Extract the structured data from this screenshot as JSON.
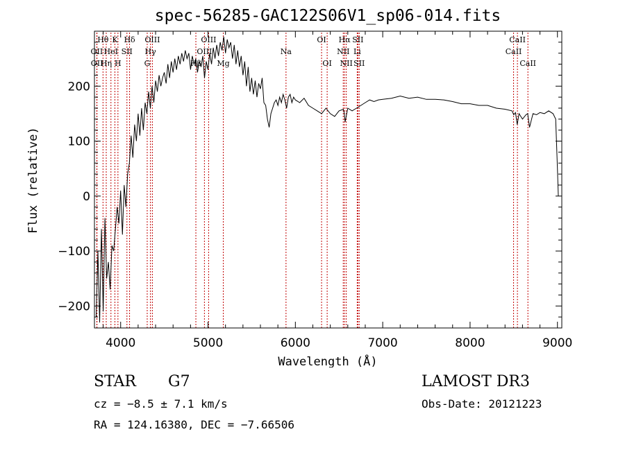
{
  "chart_data": {
    "type": "line",
    "title": "spec-56285-GAC122S06V1_sp06-014.fits",
    "xlabel": "Wavelength (Å)",
    "ylabel": "Flux (relative)",
    "xlim": [
      3700,
      9050
    ],
    "ylim": [
      -240,
      300
    ],
    "xticks": [
      4000,
      5000,
      6000,
      7000,
      8000,
      9000
    ],
    "xtick_labels": [
      "4000",
      "5000",
      "6000",
      "7000",
      "8000",
      "9000"
    ],
    "yticks": [
      -200,
      -100,
      0,
      100,
      200
    ],
    "ytick_labels": [
      "−200",
      "−100",
      "0",
      "100",
      "200"
    ],
    "grid": false,
    "series": [
      {
        "name": "spectrum",
        "x": [
          3720,
          3740,
          3760,
          3780,
          3800,
          3820,
          3840,
          3860,
          3880,
          3900,
          3920,
          3940,
          3960,
          3980,
          4000,
          4020,
          4040,
          4060,
          4080,
          4100,
          4120,
          4140,
          4160,
          4180,
          4200,
          4220,
          4240,
          4260,
          4280,
          4300,
          4320,
          4340,
          4360,
          4380,
          4400,
          4420,
          4440,
          4460,
          4480,
          4500,
          4520,
          4540,
          4560,
          4580,
          4600,
          4620,
          4640,
          4660,
          4680,
          4700,
          4720,
          4740,
          4760,
          4780,
          4800,
          4820,
          4840,
          4860,
          4880,
          4900,
          4920,
          4940,
          4960,
          4980,
          5000,
          5020,
          5040,
          5060,
          5080,
          5100,
          5120,
          5140,
          5160,
          5180,
          5200,
          5220,
          5240,
          5260,
          5280,
          5300,
          5320,
          5340,
          5360,
          5380,
          5400,
          5420,
          5440,
          5460,
          5480,
          5500,
          5520,
          5540,
          5560,
          5580,
          5600,
          5620,
          5640,
          5660,
          5680,
          5700,
          5720,
          5740,
          5760,
          5780,
          5800,
          5820,
          5840,
          5860,
          5880,
          5900,
          5920,
          5940,
          5960,
          5980,
          6000,
          6050,
          6100,
          6150,
          6200,
          6250,
          6300,
          6350,
          6400,
          6450,
          6500,
          6550,
          6560,
          6570,
          6600,
          6650,
          6700,
          6750,
          6800,
          6850,
          6900,
          6950,
          7000,
          7100,
          7200,
          7300,
          7400,
          7500,
          7600,
          7700,
          7800,
          7900,
          8000,
          8100,
          8200,
          8300,
          8400,
          8480,
          8500,
          8520,
          8540,
          8560,
          8600,
          8640,
          8660,
          8680,
          8720,
          8760,
          8800,
          8850,
          8900,
          8950,
          8980,
          9000,
          9010
        ],
        "y": [
          -220,
          -100,
          -230,
          -60,
          -210,
          -40,
          -150,
          -120,
          -170,
          -90,
          -100,
          -60,
          -20,
          -50,
          10,
          -70,
          20,
          -20,
          40,
          60,
          110,
          70,
          130,
          100,
          150,
          110,
          160,
          120,
          170,
          150,
          190,
          160,
          200,
          170,
          210,
          190,
          220,
          200,
          215,
          225,
          205,
          240,
          215,
          245,
          225,
          250,
          230,
          255,
          240,
          260,
          245,
          265,
          250,
          260,
          230,
          255,
          240,
          250,
          225,
          245,
          235,
          255,
          215,
          245,
          230,
          260,
          240,
          270,
          250,
          275,
          255,
          280,
          265,
          290,
          260,
          285,
          270,
          280,
          250,
          275,
          240,
          265,
          235,
          255,
          220,
          245,
          200,
          235,
          190,
          215,
          185,
          210,
          180,
          205,
          195,
          215,
          170,
          165,
          140,
          125,
          150,
          160,
          170,
          175,
          165,
          180,
          170,
          185,
          175,
          160,
          180,
          185,
          170,
          180,
          175,
          170,
          178,
          165,
          160,
          155,
          150,
          160,
          150,
          145,
          155,
          158,
          150,
          135,
          160,
          155,
          160,
          165,
          170,
          175,
          172,
          175,
          176,
          178,
          182,
          178,
          180,
          176,
          176,
          175,
          172,
          168,
          168,
          165,
          165,
          160,
          158,
          155,
          148,
          152,
          130,
          150,
          140,
          148,
          150,
          125,
          150,
          148,
          152,
          150,
          155,
          150,
          140,
          50,
          0
        ]
      }
    ],
    "lines": [
      {
        "name": "Hδ",
        "wave": 4102,
        "row": 0
      },
      {
        "name": "OII",
        "wave": 3727,
        "row": 1
      },
      {
        "name": "OII",
        "wave": 3729,
        "row": 2
      },
      {
        "name": "Hθ",
        "wave": 3798,
        "row": 0
      },
      {
        "name": "Hη",
        "wave": 3835,
        "row": 2
      },
      {
        "name": "HeI",
        "wave": 3889,
        "row": 1
      },
      {
        "name": "K",
        "wave": 3934,
        "row": 0
      },
      {
        "name": "H",
        "wave": 3969,
        "row": 2
      },
      {
        "name": "SII",
        "wave": 4072,
        "row": 1
      },
      {
        "name": "OIII",
        "wave": 4363,
        "row": 0
      },
      {
        "name": "Hγ",
        "wave": 4341,
        "row": 1
      },
      {
        "name": "G",
        "wave": 4304,
        "row": 2
      },
      {
        "name": "Hβ",
        "wave": 4861,
        "row": 2
      },
      {
        "name": "OIII",
        "wave": 4959,
        "row": 1
      },
      {
        "name": "OIII",
        "wave": 5007,
        "row": 0
      },
      {
        "name": "Mg",
        "wave": 5175,
        "row": 2
      },
      {
        "name": "Na",
        "wave": 5893,
        "row": 1
      },
      {
        "name": "OI",
        "wave": 6300,
        "row": 0
      },
      {
        "name": "OI",
        "wave": 6364,
        "row": 2
      },
      {
        "name": "Hα",
        "wave": 6563,
        "row": 0
      },
      {
        "name": "NII",
        "wave": 6548,
        "row": 1
      },
      {
        "name": "NII",
        "wave": 6583,
        "row": 2
      },
      {
        "name": "SII",
        "wave": 6716,
        "row": 0
      },
      {
        "name": "Li",
        "wave": 6708,
        "row": 1
      },
      {
        "name": "SII",
        "wave": 6731,
        "row": 2
      },
      {
        "name": "CaII",
        "wave": 8542,
        "row": 0
      },
      {
        "name": "CaII",
        "wave": 8498,
        "row": 1
      },
      {
        "name": "CaII",
        "wave": 8662,
        "row": 2
      }
    ]
  },
  "info": {
    "class_label": "STAR",
    "subclass": "G7",
    "survey": "LAMOST DR3",
    "cz": "cz = −8.5 ± 7.1 km/s",
    "obs_date": "Obs-Date: 20121223",
    "radec": "RA = 124.16380, DEC =  −7.66506"
  },
  "colors": {
    "line_marker": "#c00000",
    "spectrum": "#000000",
    "axes": "#000000"
  }
}
